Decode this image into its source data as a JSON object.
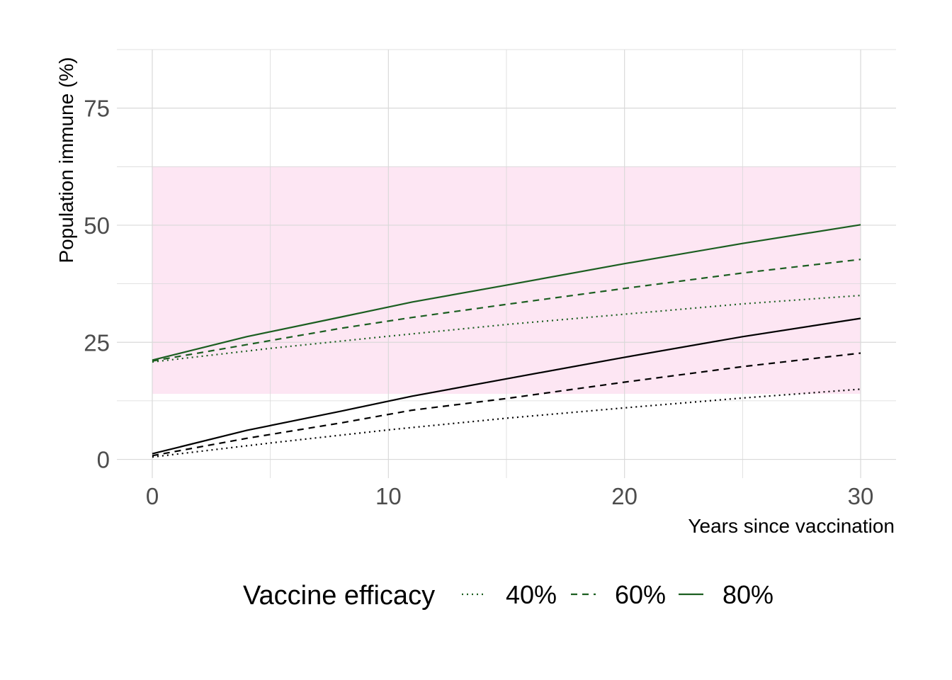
{
  "chart_data": {
    "type": "line",
    "title": "",
    "xlabel": "Years since vaccination",
    "ylabel": "Population immune (%)",
    "xlim": [
      -1.5,
      31.5
    ],
    "ylim": [
      -4,
      87.5
    ],
    "x_ticks": [
      0,
      10,
      20,
      30
    ],
    "x_tick_labels": [
      "0",
      "10",
      "20",
      "30"
    ],
    "y_ticks": [
      0,
      25,
      50,
      75
    ],
    "y_tick_labels": [
      "0",
      "25",
      "50",
      "75"
    ],
    "grid": true,
    "legend_position": "bottom",
    "legend_title": "Vaccine efficacy",
    "legend_entries": [
      {
        "label": "40%",
        "linetype": "dotted"
      },
      {
        "label": "60%",
        "linetype": "dashed"
      },
      {
        "label": "80%",
        "linetype": "solid"
      }
    ],
    "band": {
      "ymin": 14,
      "ymax": 62.5,
      "xmin": 0,
      "xmax": 30,
      "color": "#fde6f3"
    },
    "colors": {
      "green": "#1b5e20",
      "black": "#000000"
    },
    "series": [
      {
        "efficacy": "40%",
        "group": "black",
        "linetype": "dotted",
        "color": "#000000",
        "x": [
          0,
          5,
          10,
          15,
          20,
          25,
          30
        ],
        "y": [
          0.5,
          3.5,
          6.3,
          8.8,
          11,
          13.1,
          15
        ]
      },
      {
        "efficacy": "60%",
        "group": "black",
        "linetype": "dashed",
        "color": "#000000",
        "x": [
          0,
          4,
          8,
          11,
          15,
          20,
          25,
          30
        ],
        "y": [
          0.8,
          4.5,
          7.8,
          10.5,
          13,
          16.5,
          19.8,
          22.7
        ]
      },
      {
        "efficacy": "80%",
        "group": "black",
        "linetype": "solid",
        "color": "#000000",
        "x": [
          0,
          4,
          8,
          11,
          15,
          20,
          25,
          30
        ],
        "y": [
          1.2,
          6.2,
          10.3,
          13.5,
          17.2,
          21.8,
          26.2,
          30.1
        ]
      },
      {
        "efficacy": "40%",
        "group": "green",
        "linetype": "dotted",
        "color": "#1b5e20",
        "x": [
          0,
          5,
          10,
          15,
          20,
          25,
          30
        ],
        "y": [
          20.8,
          23.7,
          26.3,
          28.8,
          31,
          33.2,
          35
        ]
      },
      {
        "efficacy": "60%",
        "group": "green",
        "linetype": "dashed",
        "color": "#1b5e20",
        "x": [
          0,
          4,
          8,
          11,
          15,
          20,
          25,
          30
        ],
        "y": [
          21,
          24.5,
          28,
          30.3,
          33.1,
          36.5,
          39.8,
          42.7
        ]
      },
      {
        "efficacy": "80%",
        "group": "green",
        "linetype": "solid",
        "color": "#1b5e20",
        "x": [
          0,
          4,
          8,
          11,
          15,
          20,
          25,
          30
        ],
        "y": [
          21.2,
          26.2,
          30.4,
          33.6,
          37.2,
          41.8,
          46.1,
          50.1
        ]
      }
    ]
  }
}
